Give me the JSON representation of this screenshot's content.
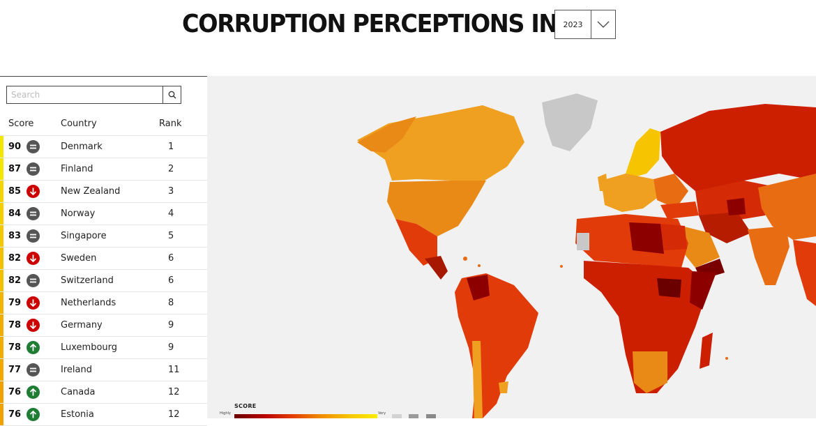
{
  "header": {
    "title": "CORRUPTION PERCEPTIONS INDEX",
    "year": "2023"
  },
  "search": {
    "placeholder": "Search",
    "value": ""
  },
  "table": {
    "headers": {
      "score": "Score",
      "country": "Country",
      "rank": "Rank"
    },
    "rows": [
      {
        "score": "90",
        "country": "Denmark",
        "rank": "1",
        "trend": "same",
        "color": "#f3e600"
      },
      {
        "score": "87",
        "country": "Finland",
        "rank": "2",
        "trend": "same",
        "color": "#f3e600"
      },
      {
        "score": "85",
        "country": "New Zealand",
        "rank": "3",
        "trend": "down",
        "color": "#f3d600"
      },
      {
        "score": "84",
        "country": "Norway",
        "rank": "4",
        "trend": "same",
        "color": "#f3cf00"
      },
      {
        "score": "83",
        "country": "Singapore",
        "rank": "5",
        "trend": "same",
        "color": "#f3c800"
      },
      {
        "score": "82",
        "country": "Sweden",
        "rank": "6",
        "trend": "down",
        "color": "#f3c000"
      },
      {
        "score": "82",
        "country": "Switzerland",
        "rank": "6",
        "trend": "same",
        "color": "#f3c000"
      },
      {
        "score": "79",
        "country": "Netherlands",
        "rank": "8",
        "trend": "down",
        "color": "#f2b400"
      },
      {
        "score": "78",
        "country": "Germany",
        "rank": "9",
        "trend": "down",
        "color": "#f2ae00"
      },
      {
        "score": "78",
        "country": "Luxembourg",
        "rank": "9",
        "trend": "up",
        "color": "#f2ae00"
      },
      {
        "score": "77",
        "country": "Ireland",
        "rank": "11",
        "trend": "same",
        "color": "#f2a800"
      },
      {
        "score": "76",
        "country": "Canada",
        "rank": "12",
        "trend": "up",
        "color": "#f2a200"
      },
      {
        "score": "76",
        "country": "Estonia",
        "rank": "12",
        "trend": "up",
        "color": "#f2a200"
      }
    ]
  },
  "legend": {
    "title": "SCORE",
    "low_label": "Highly",
    "high_label": "Very"
  },
  "colors": {
    "trend_same": "#555555",
    "trend_down": "#cc0000",
    "trend_up": "#1e7d32",
    "no_data": "#c8c8c8"
  }
}
